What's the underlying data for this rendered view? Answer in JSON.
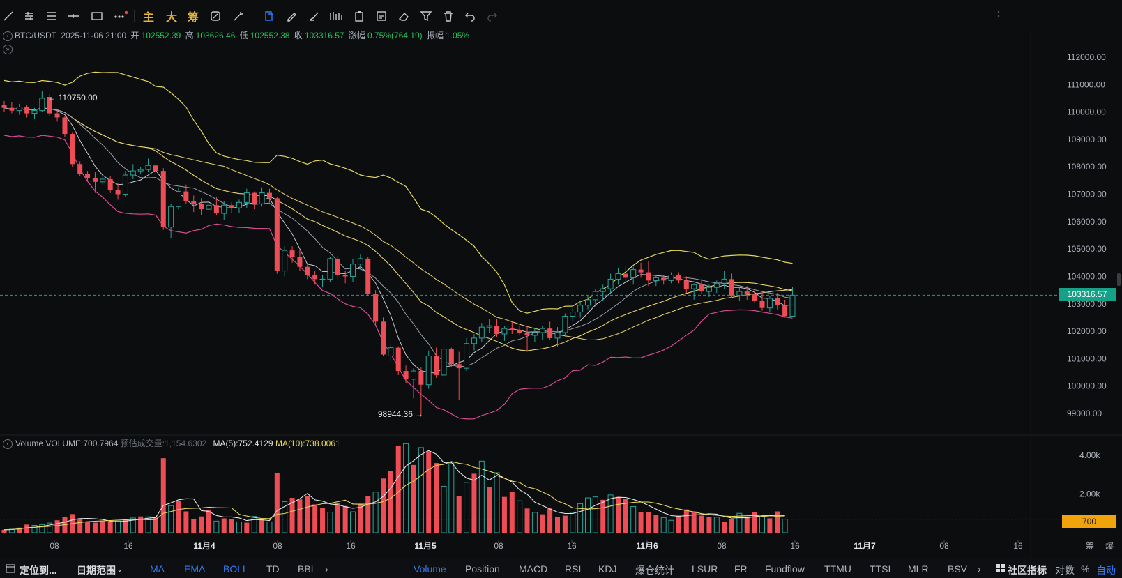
{
  "toolbar": {
    "tools": [
      {
        "name": "trend-line-icon",
        "icon": "line"
      },
      {
        "name": "parallel-lines-icon",
        "icon": "hlines"
      },
      {
        "name": "fib-lines-icon",
        "icon": "lines3"
      },
      {
        "name": "horizontal-ray-icon",
        "icon": "hray"
      },
      {
        "name": "rectangle-icon",
        "icon": "rect"
      },
      {
        "name": "more-tools-icon",
        "icon": "dots"
      }
    ],
    "cn_buttons": [
      "主",
      "大",
      "筹"
    ],
    "right_tools": [
      {
        "name": "link-icon"
      },
      {
        "name": "magic-icon"
      },
      {
        "name": "copy-icon"
      },
      {
        "name": "pencil-icon"
      },
      {
        "name": "brush-icon"
      },
      {
        "name": "pattern-icon"
      },
      {
        "name": "clipboard-icon"
      },
      {
        "name": "edit-icon"
      },
      {
        "name": "eraser-icon"
      },
      {
        "name": "filter-icon"
      },
      {
        "name": "trash-icon"
      },
      {
        "name": "undo-icon"
      },
      {
        "name": "redo-icon"
      }
    ]
  },
  "info": {
    "symbol": "BTC/USDT",
    "datetime": "2025-11-06 21:00",
    "open_label": "开",
    "open": "102552.39",
    "high_label": "高",
    "high": "103626.46",
    "low_label": "低",
    "low": "102552.38",
    "close_label": "收",
    "close": "103316.57",
    "change_label": "涨幅",
    "change": "0.75%(764.19)",
    "amp_label": "振幅",
    "amp": "1.05%"
  },
  "volume_info": {
    "label": "Volume",
    "volume": "VOLUME:700.7964",
    "est_label": "预估成交量:",
    "est": "1,154.6302",
    "ma5": "MA(5):752.4129",
    "ma10": "MA(10):738.0061"
  },
  "annotations": {
    "high": "← 110750.00",
    "low": "98944.36 →"
  },
  "price_badge": "103316.57",
  "vol_badge": "700",
  "colors": {
    "up": "#26a69a",
    "down": "#ef4d56",
    "bb_upper": "#e6d95a",
    "bb_lower": "#d94b94",
    "ma_white": "#c9ccd6",
    "ma_yellow": "#ead46a",
    "last_price": "#16a085"
  },
  "bottom_bar": {
    "locate": "定位到...",
    "range": "日期范围",
    "indicators": [
      "MA",
      "EMA",
      "BOLL",
      "TD",
      "BBI"
    ],
    "sub_indicators": [
      "Volume",
      "Position",
      "MACD",
      "RSI",
      "KDJ",
      "爆仓统计",
      "LSUR",
      "FR",
      "Fundflow",
      "TTMU",
      "TTSI",
      "MLR",
      "BSV"
    ],
    "community": "社区指标",
    "log": "对数",
    "pct": "%",
    "auto": "自动"
  },
  "chart_data": {
    "type": "candlestick",
    "symbol": "BTC/USDT",
    "price_axis": [
      "112000.00",
      "111000.00",
      "110000.00",
      "109000.00",
      "108000.00",
      "107000.00",
      "106000.00",
      "105000.00",
      "104000.00",
      "103000.00",
      "102000.00",
      "101000.00",
      "100000.00",
      "99000.00"
    ],
    "volume_axis": [
      "4.00k",
      "2.00k"
    ],
    "time_axis": [
      "08",
      "16",
      "11月4",
      "08",
      "16",
      "11月5",
      "08",
      "16",
      "11月6",
      "08",
      "16",
      "11月7",
      "08",
      "16"
    ],
    "extra_axis_labels": [
      "筹",
      "爆"
    ],
    "last_price": 103316.57,
    "high_marker": 110750.0,
    "low_marker": 98944.36,
    "ylim": [
      98600,
      112500
    ],
    "vol_ylim": [
      0,
      4500
    ],
    "candles": [
      [
        110250,
        110400,
        110000,
        110150
      ],
      [
        110150,
        110350,
        109950,
        110050
      ],
      [
        110050,
        110300,
        109900,
        110180
      ],
      [
        110180,
        110250,
        109800,
        109950
      ],
      [
        109950,
        110150,
        109750,
        110050
      ],
      [
        110050,
        110750,
        110000,
        110500
      ],
      [
        110550,
        110650,
        109850,
        109950
      ],
      [
        109950,
        110100,
        109650,
        109800
      ],
      [
        109800,
        109850,
        109100,
        109200
      ],
      [
        109200,
        109250,
        108000,
        108100
      ],
      [
        108100,
        108200,
        107650,
        107750
      ],
      [
        107750,
        107850,
        107500,
        107600
      ],
      [
        107600,
        107800,
        107050,
        107450
      ],
      [
        107450,
        107700,
        107350,
        107550
      ],
      [
        107550,
        107650,
        107050,
        107150
      ],
      [
        107150,
        107400,
        106800,
        107000
      ],
      [
        107000,
        107850,
        106900,
        107700
      ],
      [
        107700,
        108100,
        107550,
        107850
      ],
      [
        107850,
        108000,
        107750,
        107900
      ],
      [
        107900,
        108300,
        107800,
        108050
      ],
      [
        108050,
        108100,
        107750,
        107850
      ],
      [
        107850,
        107950,
        105700,
        105800
      ],
      [
        105800,
        106650,
        105400,
        106550
      ],
      [
        106550,
        107250,
        106450,
        107100
      ],
      [
        107100,
        107350,
        106650,
        106750
      ],
      [
        106750,
        106950,
        106350,
        106650
      ],
      [
        106650,
        106850,
        106250,
        106450
      ],
      [
        106450,
        106700,
        105950,
        106600
      ],
      [
        106600,
        106900,
        106250,
        106300
      ],
      [
        106300,
        106750,
        106050,
        106600
      ],
      [
        106600,
        106700,
        106300,
        106500
      ],
      [
        106500,
        106800,
        106300,
        106700
      ],
      [
        106700,
        107200,
        106500,
        107050
      ],
      [
        107050,
        107100,
        106450,
        106650
      ],
      [
        106650,
        107250,
        106550,
        107050
      ],
      [
        107050,
        107200,
        106700,
        106850
      ],
      [
        106850,
        106900,
        104100,
        104200
      ],
      [
        104200,
        105100,
        104000,
        104950
      ],
      [
        104950,
        105100,
        104500,
        104700
      ],
      [
        104700,
        104950,
        104200,
        104350
      ],
      [
        104350,
        104500,
        103900,
        104050
      ],
      [
        104050,
        104200,
        103700,
        103900
      ],
      [
        103900,
        104050,
        103600,
        103900
      ],
      [
        103900,
        104700,
        103800,
        104650
      ],
      [
        104650,
        104750,
        103900,
        104050
      ],
      [
        104050,
        104200,
        103750,
        104000
      ],
      [
        104000,
        104650,
        103800,
        104450
      ],
      [
        104450,
        104800,
        104250,
        104650
      ],
      [
        104650,
        104700,
        103300,
        103350
      ],
      [
        103350,
        103500,
        102200,
        102350
      ],
      [
        102350,
        102500,
        101100,
        101150
      ],
      [
        101100,
        101550,
        100900,
        101400
      ],
      [
        101400,
        101450,
        100400,
        100550
      ],
      [
        100550,
        100750,
        100100,
        100250
      ],
      [
        100250,
        100650,
        99550,
        100550
      ],
      [
        100550,
        100700,
        98944,
        100050
      ],
      [
        100050,
        101300,
        99900,
        101100
      ],
      [
        101100,
        101400,
        100300,
        100400
      ],
      [
        100400,
        101500,
        100250,
        101350
      ],
      [
        101350,
        101400,
        100700,
        100800
      ],
      [
        100800,
        101250,
        99500,
        100650
      ],
      [
        100650,
        101750,
        100550,
        101550
      ],
      [
        101550,
        101900,
        101300,
        101750
      ],
      [
        101750,
        102300,
        101600,
        102150
      ],
      [
        102150,
        102450,
        101950,
        102200
      ],
      [
        102200,
        102450,
        101800,
        101900
      ],
      [
        101900,
        102200,
        101650,
        102100
      ],
      [
        102100,
        102350,
        101900,
        102050
      ],
      [
        102050,
        102200,
        101850,
        101950
      ],
      [
        101950,
        102200,
        101250,
        101850
      ],
      [
        101850,
        102100,
        101600,
        101950
      ],
      [
        101950,
        102200,
        101700,
        102100
      ],
      [
        102100,
        102350,
        101700,
        101750
      ],
      [
        101750,
        102150,
        101450,
        101950
      ],
      [
        101950,
        102650,
        101800,
        102550
      ],
      [
        102550,
        102850,
        102350,
        102700
      ],
      [
        102700,
        103100,
        102500,
        102950
      ],
      [
        102950,
        103300,
        102800,
        103150
      ],
      [
        103150,
        103550,
        102900,
        103450
      ],
      [
        103450,
        103700,
        103100,
        103550
      ],
      [
        103550,
        104100,
        103400,
        103900
      ],
      [
        103900,
        104300,
        103700,
        104100
      ],
      [
        104100,
        104400,
        103800,
        103950
      ],
      [
        103950,
        104350,
        103700,
        104250
      ],
      [
        104250,
        104500,
        103950,
        104150
      ],
      [
        104150,
        104550,
        103650,
        103850
      ],
      [
        103850,
        104050,
        103650,
        103950
      ],
      [
        103950,
        104050,
        103700,
        103850
      ],
      [
        103850,
        104150,
        103750,
        104050
      ],
      [
        104050,
        104150,
        103750,
        103850
      ],
      [
        103850,
        104000,
        103400,
        103550
      ],
      [
        103550,
        103750,
        103150,
        103700
      ],
      [
        103700,
        103900,
        103350,
        103450
      ],
      [
        103450,
        103700,
        103250,
        103600
      ],
      [
        103600,
        103850,
        103400,
        103750
      ],
      [
        103750,
        104200,
        103550,
        103900
      ],
      [
        103900,
        104100,
        103200,
        103300
      ],
      [
        103300,
        103600,
        103100,
        103450
      ],
      [
        103450,
        103650,
        103150,
        103350
      ],
      [
        103350,
        103500,
        103050,
        103100
      ],
      [
        103100,
        103350,
        102750,
        102850
      ],
      [
        102850,
        103300,
        102700,
        103200
      ],
      [
        103200,
        103400,
        102800,
        102950
      ],
      [
        102950,
        103150,
        102500,
        102550
      ],
      [
        102550,
        103626,
        102552,
        103316
      ]
    ],
    "volumes": [
      [
        150,
        1
      ],
      [
        180,
        0
      ],
      [
        260,
        1
      ],
      [
        420,
        1
      ],
      [
        380,
        0
      ],
      [
        420,
        0
      ],
      [
        500,
        0
      ],
      [
        640,
        1
      ],
      [
        800,
        1
      ],
      [
        960,
        1
      ],
      [
        740,
        1
      ],
      [
        560,
        1
      ],
      [
        520,
        1
      ],
      [
        620,
        1
      ],
      [
        540,
        1
      ],
      [
        600,
        0
      ],
      [
        720,
        1
      ],
      [
        760,
        0
      ],
      [
        840,
        1
      ],
      [
        820,
        0
      ],
      [
        780,
        1
      ],
      [
        3850,
        1
      ],
      [
        1400,
        0
      ],
      [
        1650,
        1
      ],
      [
        1100,
        1
      ],
      [
        720,
        1
      ],
      [
        840,
        1
      ],
      [
        1180,
        1
      ],
      [
        600,
        0
      ],
      [
        740,
        1
      ],
      [
        720,
        1
      ],
      [
        560,
        0
      ],
      [
        520,
        1
      ],
      [
        840,
        0
      ],
      [
        680,
        1
      ],
      [
        560,
        0
      ],
      [
        3100,
        1
      ],
      [
        1600,
        0
      ],
      [
        1800,
        1
      ],
      [
        1720,
        1
      ],
      [
        1900,
        1
      ],
      [
        1460,
        1
      ],
      [
        1280,
        1
      ],
      [
        1060,
        0
      ],
      [
        1520,
        1
      ],
      [
        1380,
        1
      ],
      [
        1080,
        0
      ],
      [
        1500,
        1
      ],
      [
        1900,
        1
      ],
      [
        2100,
        0
      ],
      [
        2800,
        1
      ],
      [
        3200,
        1
      ],
      [
        4500,
        1
      ],
      [
        4600,
        0
      ],
      [
        3500,
        1
      ],
      [
        4400,
        0
      ],
      [
        4200,
        1
      ],
      [
        3600,
        1
      ],
      [
        2400,
        0
      ],
      [
        3600,
        0
      ],
      [
        1900,
        1
      ],
      [
        2600,
        0
      ],
      [
        3050,
        1
      ],
      [
        3700,
        0
      ],
      [
        2350,
        1
      ],
      [
        3100,
        0
      ],
      [
        1850,
        1
      ],
      [
        2100,
        1
      ],
      [
        1650,
        0
      ],
      [
        1250,
        1
      ],
      [
        1050,
        0
      ],
      [
        950,
        1
      ],
      [
        1250,
        1
      ],
      [
        820,
        1
      ],
      [
        880,
        1
      ],
      [
        1050,
        0
      ],
      [
        1500,
        0
      ],
      [
        1800,
        0
      ],
      [
        1850,
        0
      ],
      [
        1700,
        1
      ],
      [
        1950,
        0
      ],
      [
        1850,
        1
      ],
      [
        1750,
        1
      ],
      [
        1350,
        0
      ],
      [
        1050,
        1
      ],
      [
        1050,
        1
      ],
      [
        900,
        1
      ],
      [
        780,
        0
      ],
      [
        640,
        0
      ],
      [
        880,
        1
      ],
      [
        1200,
        1
      ],
      [
        1100,
        1
      ],
      [
        880,
        1
      ],
      [
        820,
        1
      ],
      [
        800,
        0
      ],
      [
        560,
        1
      ],
      [
        720,
        1
      ],
      [
        1000,
        0
      ],
      [
        780,
        1
      ],
      [
        1050,
        1
      ],
      [
        820,
        0
      ],
      [
        740,
        1
      ],
      [
        1100,
        1
      ],
      [
        700,
        0
      ]
    ]
  }
}
